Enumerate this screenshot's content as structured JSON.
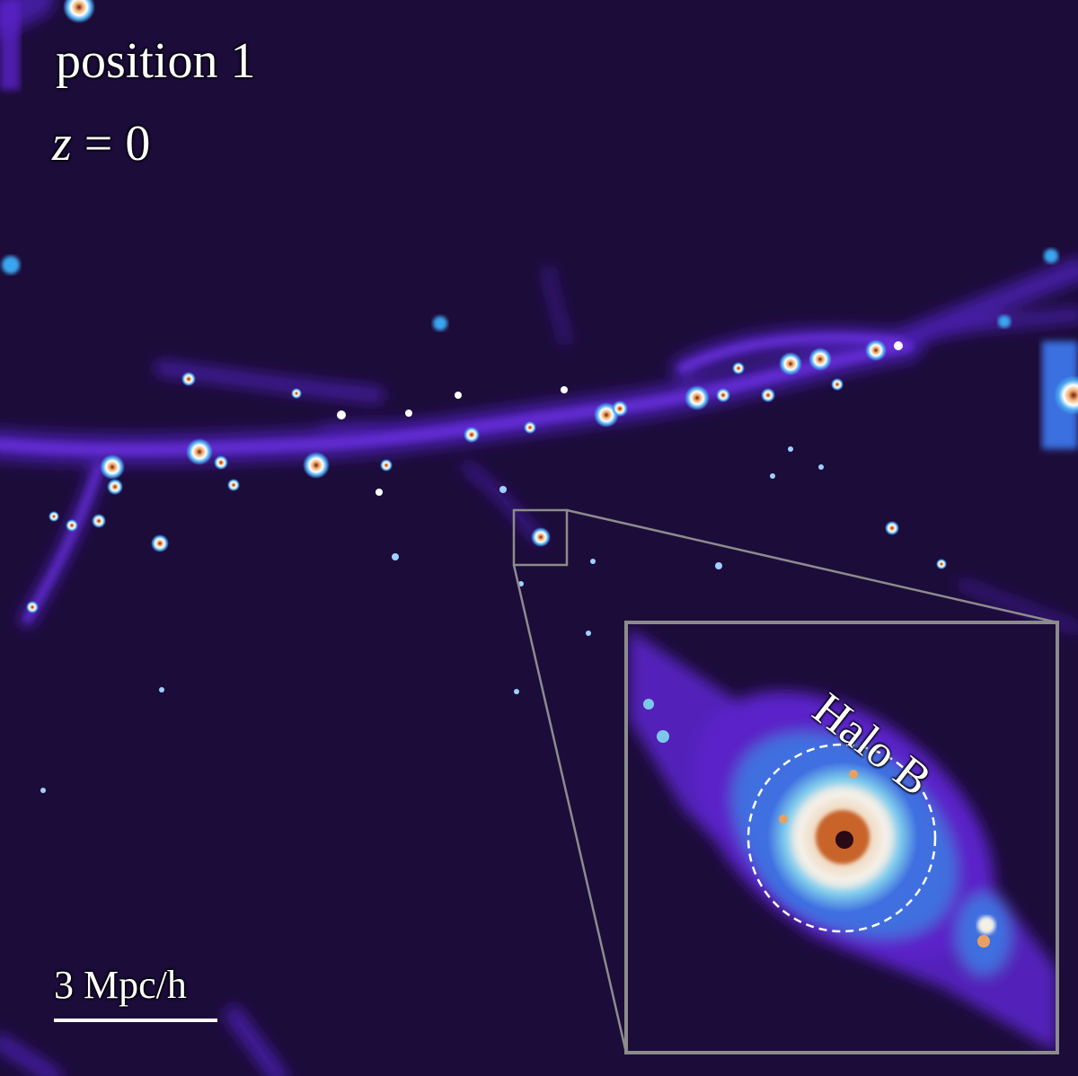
{
  "labels": {
    "position": "position 1",
    "redshift_var": "z",
    "redshift_rest": " = 0",
    "halo": "Halo B",
    "scale": "3 Mpc/h"
  },
  "colors": {
    "background": "#1c0c3a",
    "filament": "#5a24c8",
    "glow": "#3aa6f0",
    "core": "#e08a3a",
    "inset_frame": "#8c8c8c",
    "circle": "#ffffff"
  }
}
